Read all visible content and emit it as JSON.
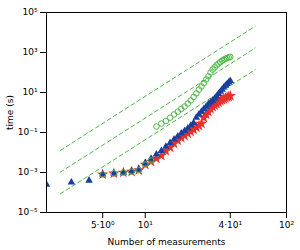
{
  "chart_data": {
    "type": "scatter",
    "xlabel": "Number of measurements",
    "ylabel": "time (s)",
    "log": true,
    "grid": false,
    "xlim": [
      2.0,
      100
    ],
    "ylim": [
      1e-05,
      100000.0
    ],
    "xticks": [
      {
        "value": 5,
        "label": "5·10⁰"
      },
      {
        "value": 10,
        "label": "10¹"
      },
      {
        "value": 40,
        "label": "4·10¹"
      },
      {
        "value": 100,
        "label": "10²"
      }
    ],
    "yticks": [
      {
        "value": 1e-05,
        "label": "10⁻⁵"
      },
      {
        "value": 0.001,
        "label": "10⁻³"
      },
      {
        "value": 0.1,
        "label": "10⁻¹"
      },
      {
        "value": 10,
        "label": "10¹"
      },
      {
        "value": 1000,
        "label": "10³"
      },
      {
        "value": 100000.0,
        "label": "10⁵"
      }
    ],
    "series": [
      {
        "type": "line",
        "line_style": "dashed",
        "color": "#4db848",
        "x": [
          2.5,
          60
        ],
        "values": [
          0.012567,
          20425.7
        ]
      },
      {
        "type": "line",
        "line_style": "dashed",
        "color": "#4db848",
        "x": [
          2.5,
          60
        ],
        "values": [
          0.0010316,
          1676.6
        ]
      },
      {
        "type": "line",
        "line_style": "dashed",
        "color": "#4db848",
        "x": [
          2.5,
          60
        ],
        "values": [
          8.4675e-05,
          137.63
        ]
      },
      {
        "type": "scatter",
        "marker": "star",
        "color": "#e8302a",
        "x": [
          5,
          6,
          7,
          8,
          9,
          10,
          11,
          12,
          13,
          14,
          15,
          16,
          17,
          18,
          19,
          20,
          21,
          22,
          23,
          24,
          25,
          26,
          27,
          28,
          29,
          30,
          31,
          32,
          33,
          34,
          35,
          36,
          37,
          38,
          39,
          40
        ],
        "values": [
          0.0008,
          0.0009,
          0.001,
          0.0011,
          0.0013,
          0.0025,
          0.0035,
          0.005,
          0.007,
          0.012,
          0.018,
          0.028,
          0.04,
          0.055,
          0.07,
          0.09,
          0.11,
          0.14,
          0.18,
          0.22,
          0.28,
          0.55,
          0.8,
          1.1,
          1.5,
          1.9,
          2.3,
          2.7,
          3.2,
          3.8,
          4.3,
          4.8,
          5.3,
          5.8,
          6.2,
          6.8
        ]
      },
      {
        "type": "scatter",
        "marker": "triangle",
        "color": "#1a3f9e",
        "x": [
          2,
          3,
          4,
          5,
          6,
          7,
          8,
          9,
          10,
          11,
          12,
          13,
          14,
          15,
          16,
          17,
          18,
          19,
          20,
          21,
          22,
          23,
          24,
          25,
          26,
          27,
          28,
          29,
          30,
          31,
          32,
          33,
          34,
          35,
          36,
          37,
          38,
          39,
          40
        ],
        "values": [
          0.00025,
          0.00032,
          0.0004,
          0.0008,
          0.0009,
          0.001,
          0.0012,
          0.0015,
          0.003,
          0.005,
          0.008,
          0.012,
          0.02,
          0.03,
          0.045,
          0.065,
          0.09,
          0.12,
          0.16,
          0.22,
          0.3,
          0.55,
          0.8,
          1.1,
          1.5,
          2.0,
          2.6,
          3.2,
          4.0,
          5.0,
          6.5,
          8.5,
          11.0,
          14.0,
          18.0,
          22.0,
          27.0,
          32.0,
          38.0
        ]
      },
      {
        "type": "scatter",
        "marker": "circle-open",
        "color": "#4db848",
        "x": [
          5,
          6,
          7,
          8,
          9,
          10,
          11,
          12,
          13,
          14,
          15,
          16,
          17,
          18,
          19,
          20,
          21,
          22,
          23,
          24,
          25,
          26,
          27,
          28,
          29,
          30,
          31,
          32,
          33,
          34,
          35,
          36,
          37,
          38,
          39,
          40
        ],
        "values": [
          0.0008,
          0.0009,
          0.001,
          0.0011,
          0.0013,
          0.0025,
          0.004,
          0.2,
          0.28,
          0.38,
          0.55,
          0.8,
          1.1,
          1.5,
          2.0,
          2.8,
          4.0,
          6.0,
          9.0,
          14.0,
          20.0,
          30.0,
          45.0,
          65.0,
          100.0,
          140.0,
          180.0,
          230.0,
          280.0,
          330.0,
          390.0,
          440.0,
          490.0,
          530.0,
          570.0,
          600.0
        ]
      }
    ]
  }
}
